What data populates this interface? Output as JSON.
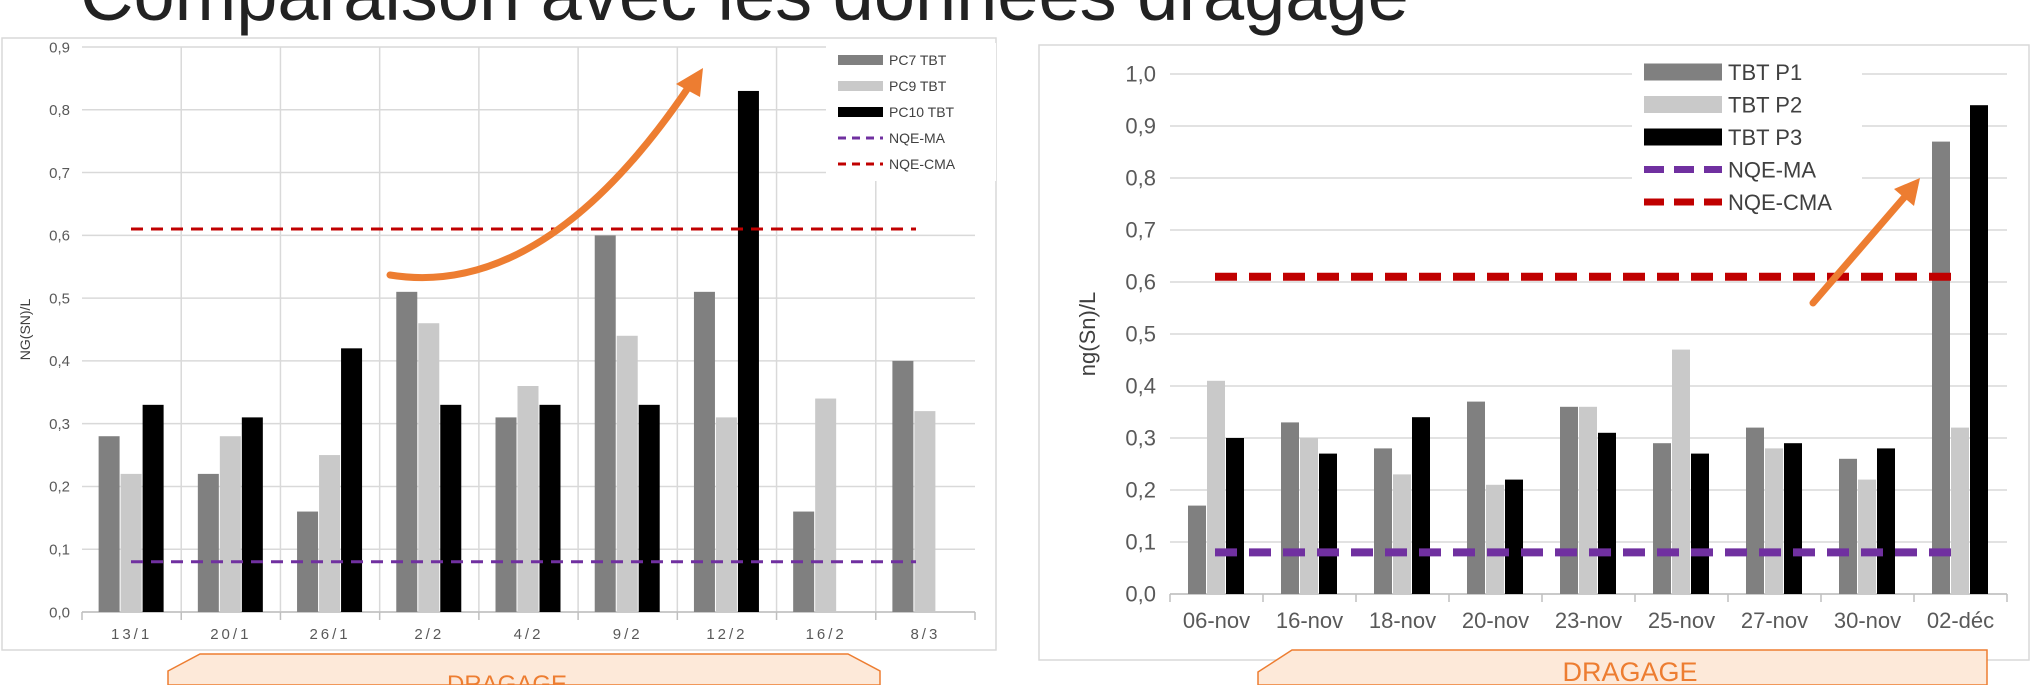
{
  "slide": {
    "title": "Comparaison avec les données dragage"
  },
  "colors": {
    "pc7": "#808080",
    "pc9": "#c9c9c9",
    "pc10": "#000000",
    "nqe_ma": "#7030a0",
    "nqe_cma": "#c00000",
    "arrow": "#ed7d31",
    "band_fill": "#fde9d9",
    "band_stroke": "#ed7d31",
    "band_text": "#ed7d31",
    "grid": "#d9d9d9",
    "axis_text": "#595959",
    "frame": "#d9d9d9"
  },
  "chart_data": [
    {
      "type": "bar",
      "categories": [
        "13/1",
        "20/1",
        "26/1",
        "2/2",
        "4/2",
        "9/2",
        "12/2",
        "16/2",
        "8/3"
      ],
      "series": [
        {
          "name": "PC7 TBT",
          "values": [
            0.28,
            0.22,
            0.16,
            0.51,
            0.31,
            0.6,
            0.51,
            0.16,
            0.4
          ]
        },
        {
          "name": "PC9 TBT",
          "values": [
            0.22,
            0.28,
            0.25,
            0.46,
            0.36,
            0.44,
            0.31,
            0.34,
            0.32
          ]
        },
        {
          "name": "PC10 TBT",
          "values": [
            0.33,
            0.31,
            0.42,
            0.33,
            0.33,
            0.33,
            0.83,
            null,
            null
          ]
        }
      ],
      "reference_lines": [
        {
          "name": "NQE-MA",
          "value": 0.08,
          "style": "dashed"
        },
        {
          "name": "NQE-CMA",
          "value": 0.61,
          "style": "dashed"
        }
      ],
      "ylabel": "NG(SN)/L",
      "ylim": [
        0,
        0.9
      ],
      "yticks": [
        "0,0",
        "0,1",
        "0,2",
        "0,3",
        "0,4",
        "0,5",
        "0,6",
        "0,7",
        "0,8",
        "0,9"
      ],
      "grid": true,
      "legend_position": "top-right",
      "band_label": "DRAGAGE"
    },
    {
      "type": "bar",
      "categories": [
        "06-nov",
        "16-nov",
        "18-nov",
        "20-nov",
        "23-nov",
        "25-nov",
        "27-nov",
        "30-nov",
        "02-déc"
      ],
      "series": [
        {
          "name": "TBT P1",
          "values": [
            0.17,
            0.33,
            0.28,
            0.37,
            0.36,
            0.29,
            0.32,
            0.26,
            0.87
          ]
        },
        {
          "name": "TBT P2",
          "values": [
            0.41,
            0.3,
            0.23,
            0.21,
            0.36,
            0.47,
            0.28,
            0.22,
            0.32
          ]
        },
        {
          "name": "TBT P3",
          "values": [
            0.3,
            0.27,
            0.34,
            0.22,
            0.31,
            0.27,
            0.29,
            0.28,
            0.94
          ]
        }
      ],
      "reference_lines": [
        {
          "name": "NQE-MA",
          "value": 0.08,
          "style": "dashed"
        },
        {
          "name": "NQE-CMA",
          "value": 0.61,
          "style": "dashed"
        }
      ],
      "ylabel": "ng(Sn)/L",
      "ylim": [
        0,
        1.0
      ],
      "yticks": [
        "0,0",
        "0,1",
        "0,2",
        "0,3",
        "0,4",
        "0,5",
        "0,6",
        "0,7",
        "0,8",
        "0,9",
        "1,0"
      ],
      "grid": true,
      "legend_position": "top-right",
      "band_label": "DRAGAGE"
    }
  ]
}
